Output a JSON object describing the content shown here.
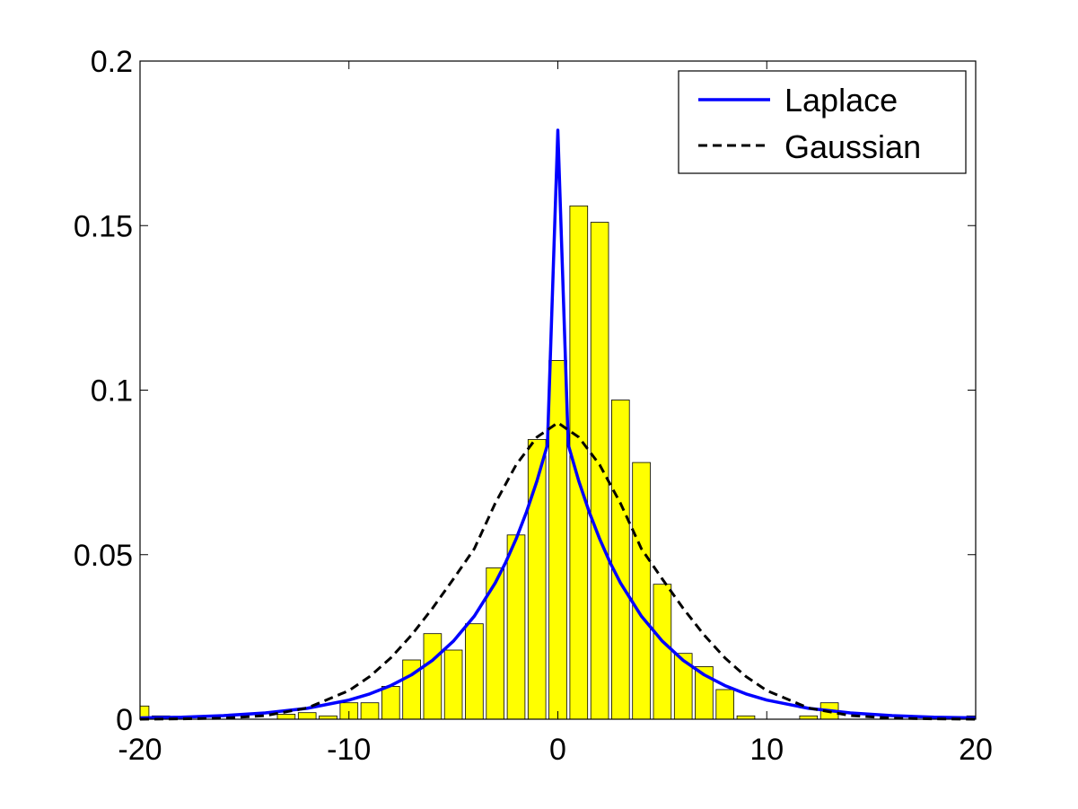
{
  "chart_data": {
    "type": "bar",
    "title": "",
    "xlabel": "",
    "ylabel": "",
    "xlim": [
      -20,
      20
    ],
    "ylim": [
      0,
      0.2
    ],
    "x_ticks": [
      -20,
      -10,
      0,
      10,
      20
    ],
    "x_tick_labels": [
      "-20",
      "-10",
      "0",
      "10",
      "20"
    ],
    "y_ticks": [
      0,
      0.05,
      0.1,
      0.15,
      0.2
    ],
    "y_tick_labels": [
      "0",
      "0.05",
      "0.1",
      "0.15",
      "0.2"
    ],
    "grid": false,
    "legend_position": "top-right",
    "histogram": {
      "color": "#ffff00",
      "edge_color": "#000000",
      "bar_width": 0.85,
      "bars": [
        {
          "x": -20,
          "y": 0.004
        },
        {
          "x": -19,
          "y": 0.001
        },
        {
          "x": -18,
          "y": 0.0
        },
        {
          "x": -17,
          "y": 0.0
        },
        {
          "x": -16,
          "y": 0.0
        },
        {
          "x": -15,
          "y": 0.0
        },
        {
          "x": -14,
          "y": 0.0
        },
        {
          "x": -13,
          "y": 0.0015
        },
        {
          "x": -12,
          "y": 0.002
        },
        {
          "x": -11,
          "y": 0.001
        },
        {
          "x": -10,
          "y": 0.005
        },
        {
          "x": -9,
          "y": 0.005
        },
        {
          "x": -8,
          "y": 0.01
        },
        {
          "x": -7,
          "y": 0.018
        },
        {
          "x": -6,
          "y": 0.026
        },
        {
          "x": -5,
          "y": 0.021
        },
        {
          "x": -4,
          "y": 0.029
        },
        {
          "x": -3,
          "y": 0.046
        },
        {
          "x": -2,
          "y": 0.056
        },
        {
          "x": -1,
          "y": 0.085
        },
        {
          "x": 0,
          "y": 0.109
        },
        {
          "x": 1,
          "y": 0.156
        },
        {
          "x": 2,
          "y": 0.151
        },
        {
          "x": 3,
          "y": 0.097
        },
        {
          "x": 4,
          "y": 0.078
        },
        {
          "x": 5,
          "y": 0.041
        },
        {
          "x": 6,
          "y": 0.02
        },
        {
          "x": 7,
          "y": 0.016
        },
        {
          "x": 8,
          "y": 0.009
        },
        {
          "x": 9,
          "y": 0.001
        },
        {
          "x": 10,
          "y": 0.0
        },
        {
          "x": 11,
          "y": 0.0
        },
        {
          "x": 12,
          "y": 0.001
        },
        {
          "x": 13,
          "y": 0.005
        },
        {
          "x": 14,
          "y": 0.0
        },
        {
          "x": 15,
          "y": 0.0
        },
        {
          "x": 16,
          "y": 0.0
        },
        {
          "x": 17,
          "y": 0.0
        },
        {
          "x": 18,
          "y": 0.0
        },
        {
          "x": 19,
          "y": 0.0
        },
        {
          "x": 20,
          "y": 0.001
        }
      ]
    },
    "series": [
      {
        "name": "Laplace",
        "color": "#0000ff",
        "line_style": "solid",
        "x": [
          -20,
          -18,
          -16,
          -14,
          -12,
          -10,
          -9,
          -8,
          -7,
          -6,
          -5,
          -4,
          -3,
          -2.5,
          -2,
          -1.5,
          -1,
          -0.5,
          0,
          0.5,
          1,
          1.5,
          2,
          2.5,
          3,
          4,
          5,
          6,
          7,
          8,
          9,
          10,
          12,
          14,
          16,
          18,
          20
        ],
        "y": [
          0.0004,
          0.0006,
          0.0011,
          0.0019,
          0.0033,
          0.0058,
          0.0077,
          0.0102,
          0.0135,
          0.0179,
          0.0237,
          0.0313,
          0.0414,
          0.0476,
          0.0548,
          0.063,
          0.0724,
          0.0834,
          0.179,
          0.0834,
          0.0724,
          0.063,
          0.0548,
          0.0476,
          0.0414,
          0.0313,
          0.0237,
          0.0179,
          0.0135,
          0.0102,
          0.0077,
          0.0058,
          0.0033,
          0.0019,
          0.0011,
          0.0006,
          0.0004
        ]
      },
      {
        "name": "Gaussian",
        "color": "#000000",
        "line_style": "dashed",
        "x": [
          -20,
          -18,
          -16,
          -14,
          -12,
          -10,
          -9,
          -8,
          -7,
          -6,
          -5,
          -4,
          -3,
          -2,
          -1,
          0,
          1,
          2,
          3,
          4,
          5,
          6,
          7,
          8,
          9,
          10,
          12,
          14,
          16,
          18,
          20
        ],
        "y": [
          0.0,
          0.0001,
          0.0003,
          0.0011,
          0.0034,
          0.0087,
          0.013,
          0.0186,
          0.0256,
          0.0337,
          0.0426,
          0.0518,
          0.0656,
          0.0773,
          0.0857,
          0.0901,
          0.0857,
          0.0773,
          0.0656,
          0.0518,
          0.0426,
          0.0337,
          0.0256,
          0.0186,
          0.013,
          0.0087,
          0.0034,
          0.0011,
          0.0003,
          0.0001,
          0.0
        ]
      }
    ]
  }
}
